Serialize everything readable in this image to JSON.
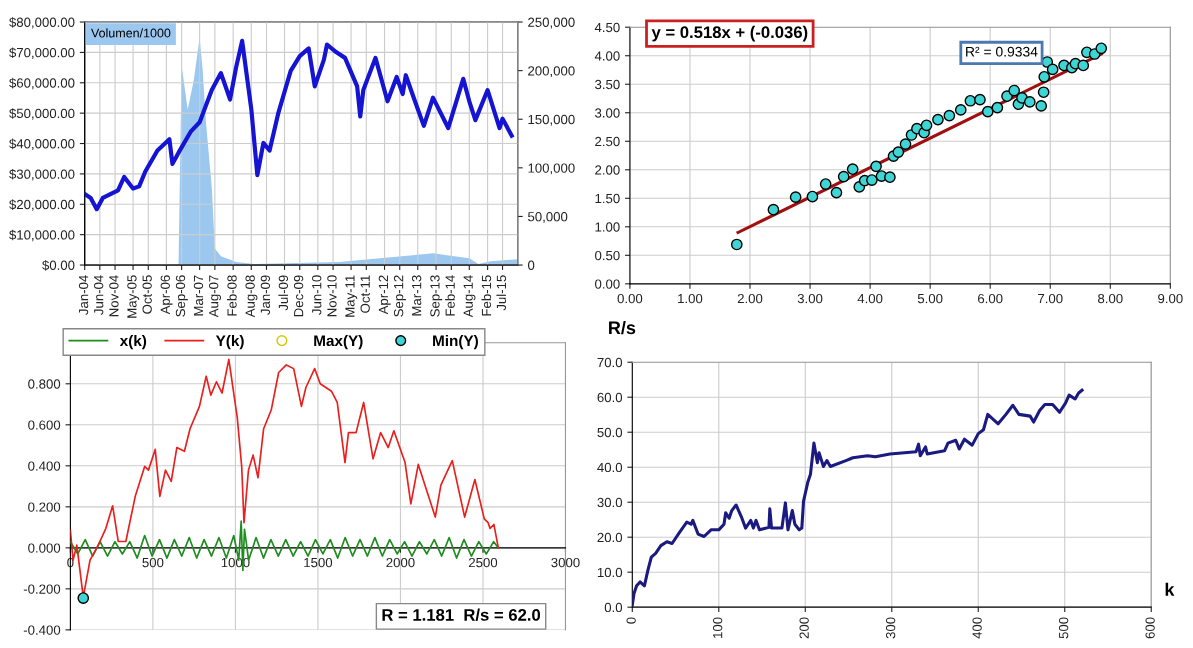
{
  "chart_data": [
    {
      "type": "line",
      "xlim": [
        "2004-01",
        "2015-12"
      ],
      "xticks": [
        {
          "value": "2004-01",
          "label": "Jan-04"
        },
        {
          "value": "2004-06",
          "label": "Jun-04"
        },
        {
          "value": "2004-11",
          "label": "Nov-04"
        },
        {
          "value": "2005-05",
          "label": "May-05"
        },
        {
          "value": "2005-10",
          "label": "Oct-05"
        },
        {
          "value": "2006-04",
          "label": "Apr-06"
        },
        {
          "value": "2006-09",
          "label": "Sep-06"
        },
        {
          "value": "2007-03",
          "label": "Mar-07"
        },
        {
          "value": "2007-08",
          "label": "Aug-07"
        },
        {
          "value": "2008-02",
          "label": "Feb-08"
        },
        {
          "value": "2008-08",
          "label": "Aug-08"
        },
        {
          "value": "2009-01",
          "label": "Jan-09"
        },
        {
          "value": "2009-07",
          "label": "Jul-09"
        },
        {
          "value": "2009-12",
          "label": "Dec-09"
        },
        {
          "value": "2010-06",
          "label": "Jun-10"
        },
        {
          "value": "2010-11",
          "label": "Nov-10"
        },
        {
          "value": "2011-05",
          "label": "May-11"
        },
        {
          "value": "2011-10",
          "label": "Oct-11"
        },
        {
          "value": "2012-04",
          "label": "Apr-12"
        },
        {
          "value": "2012-09",
          "label": "Sep-12"
        },
        {
          "value": "2013-03",
          "label": "Mar-13"
        },
        {
          "value": "2013-09",
          "label": "Sep-13"
        },
        {
          "value": "2014-02",
          "label": "Feb-14"
        },
        {
          "value": "2014-08",
          "label": "Aug-14"
        },
        {
          "value": "2015-02",
          "label": "Feb-15"
        },
        {
          "value": "2015-07",
          "label": "Jul-15"
        }
      ],
      "ylim": [
        0,
        80000
      ],
      "yticks": [
        {
          "value": 0,
          "label": "$0.00"
        },
        {
          "value": 10000,
          "label": "$10,000.00"
        },
        {
          "value": 20000,
          "label": "$20,000.00"
        },
        {
          "value": 30000,
          "label": "$30,000.00"
        },
        {
          "value": 40000,
          "label": "$40,000.00"
        },
        {
          "value": 50000,
          "label": "$50,000.00"
        },
        {
          "value": 60000,
          "label": "$60,000.00"
        },
        {
          "value": 70000,
          "label": "$70,000.00"
        },
        {
          "value": 80000,
          "label": "$80,000.00"
        }
      ],
      "y2lim": [
        0,
        250000
      ],
      "y2ticks": [
        0,
        {
          "value": 50000,
          "label": "50,000"
        },
        {
          "value": 100000,
          "label": "100,000"
        },
        {
          "value": 150000,
          "label": "150,000"
        },
        {
          "value": 200000,
          "label": "200,000"
        },
        {
          "value": 250000,
          "label": "250,000"
        }
      ],
      "grid": true,
      "legend": "top left",
      "series": [
        {
          "name": "Volumen/1000",
          "type": "area",
          "axis": "y2",
          "color": "#9cc8f0",
          "x": [
            "2004-01",
            "2006-08",
            "2006-09",
            "2006-11",
            "2007-01",
            "2007-03",
            "2007-04",
            "2007-05",
            "2007-07",
            "2007-08",
            "2007-10",
            "2008-03",
            "2008-09",
            "2011-01",
            "2013-08",
            "2014-08",
            "2014-11",
            "2015-03",
            "2015-12"
          ],
          "values": [
            0,
            0,
            205000,
            160000,
            190000,
            234000,
            200000,
            150000,
            80000,
            17000,
            9000,
            3000,
            1000,
            3000,
            12000,
            7000,
            1000,
            4000,
            6000
          ]
        },
        {
          "color": "#1414d2",
          "x": [
            "2004-01",
            "2004-03",
            "2004-05",
            "2004-07",
            "2004-12",
            "2005-02",
            "2005-05",
            "2005-07",
            "2005-09",
            "2006-01",
            "2006-05",
            "2006-06",
            "2006-08",
            "2006-12",
            "2007-03",
            "2007-07",
            "2007-10",
            "2008-01",
            "2008-03",
            "2008-05",
            "2008-08",
            "2008-10",
            "2008-12",
            "2009-02",
            "2009-05",
            "2009-09",
            "2009-12",
            "2010-03",
            "2010-05",
            "2010-08",
            "2010-09",
            "2010-12",
            "2011-03",
            "2011-07",
            "2011-08",
            "2011-09",
            "2012-01",
            "2012-05",
            "2012-08",
            "2012-10",
            "2012-11",
            "2013-02",
            "2013-05",
            "2013-08",
            "2014-01",
            "2014-03",
            "2014-06",
            "2014-08",
            "2014-10",
            "2015-02",
            "2015-06",
            "2015-07",
            "2015-10"
          ],
          "values": [
            23400,
            22100,
            18400,
            22100,
            24600,
            29000,
            25200,
            25900,
            30800,
            37700,
            41400,
            33300,
            37000,
            43900,
            47000,
            57600,
            63200,
            54500,
            65000,
            73800,
            51400,
            29600,
            40200,
            37700,
            50200,
            63900,
            68800,
            71300,
            58800,
            67600,
            72600,
            70100,
            68200,
            58800,
            48900,
            57600,
            68200,
            53900,
            61900,
            56300,
            62500,
            53900,
            45800,
            55100,
            45100,
            51400,
            61300,
            53900,
            47700,
            57600,
            45100,
            48200,
            42600
          ]
        }
      ]
    },
    {
      "type": "scatter",
      "xlim": [
        0,
        9
      ],
      "xticks": [
        {
          "value": 0,
          "label": "0.00"
        },
        {
          "value": 1,
          "label": "1.00"
        },
        {
          "value": 2,
          "label": "2.00"
        },
        {
          "value": 3,
          "label": "3.00"
        },
        {
          "value": 4,
          "label": "4.00"
        },
        {
          "value": 5,
          "label": "5.00"
        },
        {
          "value": 6,
          "label": "6.00"
        },
        {
          "value": 7,
          "label": "7.00"
        },
        {
          "value": 8,
          "label": "8.00"
        },
        {
          "value": 9,
          "label": "9.00"
        }
      ],
      "ylim": [
        0,
        4.5
      ],
      "yticks": [
        {
          "value": 0,
          "label": "0.00"
        },
        {
          "value": 0.5,
          "label": "0.50"
        },
        {
          "value": 1,
          "label": "1.00"
        },
        {
          "value": 1.5,
          "label": "1.50"
        },
        {
          "value": 2,
          "label": "2.00"
        },
        {
          "value": 2.5,
          "label": "2.50"
        },
        {
          "value": 3,
          "label": "3.00"
        },
        {
          "value": 3.5,
          "label": "3.50"
        },
        {
          "value": 4,
          "label": "4.00"
        },
        {
          "value": 4.5,
          "label": "4.50"
        }
      ],
      "grid": true,
      "annotations": [
        "y = 0.518x + (-0.036)",
        "R² = 0.9334"
      ],
      "series": [
        {
          "color": "#3fd5d5",
          "marker": "circle",
          "x": [
            1.78,
            2.39,
            2.76,
            3.04,
            3.26,
            3.44,
            3.56,
            3.71,
            3.82,
            3.91,
            4.03,
            4.1,
            4.19,
            4.33,
            4.39,
            4.47,
            4.59,
            4.69,
            4.78,
            4.9,
            4.94,
            5.13,
            5.32,
            5.51,
            5.67,
            5.83,
            5.96,
            6.12,
            6.28,
            6.4,
            6.47,
            6.53,
            6.66,
            6.85,
            6.89,
            6.9,
            6.95,
            7.04,
            7.23,
            7.36,
            7.42,
            7.55,
            7.61,
            7.74,
            7.85
          ],
          "values": [
            0.69,
            1.3,
            1.52,
            1.53,
            1.75,
            1.6,
            1.88,
            2.01,
            1.7,
            1.81,
            1.82,
            2.06,
            1.89,
            1.87,
            2.24,
            2.31,
            2.45,
            2.61,
            2.72,
            2.65,
            2.78,
            2.88,
            2.95,
            3.05,
            3.21,
            3.23,
            3.02,
            3.09,
            3.29,
            3.39,
            3.15,
            3.26,
            3.19,
            3.12,
            3.36,
            3.63,
            3.89,
            3.76,
            3.83,
            3.79,
            3.86,
            3.83,
            4.06,
            4.03,
            4.13
          ]
        },
        {
          "type": "line",
          "color": "#a01010",
          "x": [
            1.8,
            7.85
          ],
          "values": [
            0.9,
            4.03
          ]
        }
      ]
    },
    {
      "type": "line",
      "xlim": [
        0,
        3000
      ],
      "xticks": [
        0,
        500,
        1000,
        1500,
        2000,
        2500,
        3000
      ],
      "ylim": [
        -0.4,
        1.0
      ],
      "yticks": [
        {
          "value": -0.4,
          "label": "-0.400"
        },
        {
          "value": -0.2,
          "label": "-0.200"
        },
        {
          "value": 0,
          "label": "0.000"
        },
        {
          "value": 0.2,
          "label": "0.200"
        },
        {
          "value": 0.4,
          "label": "0.400"
        },
        {
          "value": 0.6,
          "label": "0.600"
        },
        {
          "value": 0.8,
          "label": "0.800"
        }
      ],
      "grid": true,
      "legend": "top left",
      "annotations": [
        "R = 1.181  R/s = 62.0"
      ],
      "series": [
        {
          "name": "x(k)",
          "color": "#1e8c1e",
          "x": [
            0,
            45,
            90,
            135,
            180,
            225,
            270,
            315,
            360,
            405,
            450,
            495,
            540,
            585,
            630,
            675,
            720,
            765,
            810,
            855,
            900,
            945,
            990,
            1020,
            1035,
            1045,
            1055,
            1080,
            1125,
            1170,
            1215,
            1260,
            1305,
            1350,
            1395,
            1440,
            1485,
            1530,
            1575,
            1620,
            1665,
            1710,
            1755,
            1800,
            1845,
            1890,
            1935,
            1980,
            2025,
            2070,
            2115,
            2160,
            2205,
            2250,
            2295,
            2340,
            2385,
            2430,
            2475,
            2520,
            2565,
            2593
          ],
          "values": [
            0.03,
            -0.03,
            0.04,
            -0.04,
            0.03,
            -0.04,
            0.03,
            -0.03,
            0.03,
            -0.05,
            0.06,
            -0.04,
            0.04,
            -0.05,
            0.04,
            -0.04,
            0.05,
            -0.05,
            0.04,
            -0.04,
            0.05,
            -0.05,
            0.06,
            -0.06,
            0.13,
            -0.11,
            0.09,
            -0.06,
            0.05,
            -0.05,
            0.04,
            -0.04,
            0.04,
            -0.04,
            0.03,
            -0.04,
            0.04,
            -0.03,
            0.04,
            -0.05,
            0.05,
            -0.04,
            0.04,
            -0.04,
            0.05,
            -0.04,
            0.04,
            -0.03,
            0.03,
            -0.04,
            0.03,
            -0.03,
            0.04,
            -0.04,
            0.05,
            -0.05,
            0.04,
            -0.04,
            0.03,
            -0.03,
            0.03,
            0.0
          ]
        },
        {
          "name": "Y(k)",
          "color": "#e8201e",
          "x": [
            0,
            16,
            39,
            78,
            119,
            169,
            215,
            256,
            290,
            336,
            393,
            450,
            473,
            514,
            542,
            576,
            611,
            645,
            691,
            725,
            782,
            823,
            851,
            885,
            919,
            960,
            1011,
            1038,
            1052,
            1079,
            1107,
            1137,
            1171,
            1217,
            1262,
            1308,
            1353,
            1400,
            1427,
            1480,
            1514,
            1582,
            1617,
            1664,
            1685,
            1731,
            1777,
            1834,
            1880,
            1926,
            1960,
            2028,
            2063,
            2108,
            2211,
            2245,
            2314,
            2389,
            2451,
            2508,
            2531,
            2543,
            2566,
            2593
          ],
          "values": [
            0.086,
            -0.06,
            0.013,
            -0.24,
            -0.06,
            0.013,
            0.095,
            0.205,
            0.031,
            0.031,
            0.251,
            0.397,
            0.379,
            0.48,
            0.251,
            0.379,
            0.324,
            0.489,
            0.471,
            0.581,
            0.69,
            0.837,
            0.745,
            0.81,
            0.755,
            0.919,
            0.636,
            0.397,
            0.123,
            0.379,
            0.452,
            0.342,
            0.581,
            0.672,
            0.855,
            0.892,
            0.874,
            0.69,
            0.782,
            0.874,
            0.8,
            0.764,
            0.709,
            0.416,
            0.562,
            0.562,
            0.709,
            0.434,
            0.562,
            0.489,
            0.571,
            0.416,
            0.214,
            0.407,
            0.15,
            0.306,
            0.425,
            0.15,
            0.333,
            0.141,
            0.123,
            0.095,
            0.114,
            0.0
          ]
        },
        {
          "name": "Max(Y)",
          "type": "scatter",
          "color": "#d8c800",
          "marker": "circle"
        },
        {
          "name": "Min(Y)",
          "type": "scatter",
          "color": "#3fd5d5",
          "marker": "circle",
          "x": [
            78
          ],
          "values": [
            -0.245
          ]
        }
      ]
    },
    {
      "type": "line",
      "xlabel": "k",
      "ylabel": "R/s",
      "xlim": [
        0,
        600
      ],
      "xticks": [
        0,
        100,
        200,
        300,
        400,
        500,
        600
      ],
      "ylim": [
        0,
        70
      ],
      "yticks": [
        {
          "value": 0,
          "label": "0.0"
        },
        {
          "value": 10,
          "label": "10.0"
        },
        {
          "value": 20,
          "label": "20.0"
        },
        {
          "value": 30,
          "label": "30.0"
        },
        {
          "value": 40,
          "label": "40.0"
        },
        {
          "value": 50,
          "label": "50.0"
        },
        {
          "value": 60,
          "label": "60.0"
        },
        {
          "value": 70,
          "label": "70.0"
        }
      ],
      "grid": true,
      "series": [
        {
          "color": "#1a1a80",
          "x": [
            0,
            2,
            5,
            9,
            14,
            18,
            22,
            27,
            33,
            40,
            46,
            55,
            63,
            68,
            70,
            76,
            83,
            91,
            100,
            106,
            108,
            112,
            115,
            120,
            126,
            131,
            137,
            140,
            143,
            147,
            158,
            159,
            161,
            173,
            177,
            180,
            185,
            188,
            193,
            196,
            198,
            203,
            206,
            210,
            214,
            216,
            221,
            225,
            229,
            247,
            255,
            272,
            281,
            298,
            328,
            331,
            333,
            339,
            341,
            361,
            365,
            374,
            378,
            384,
            393,
            400,
            406,
            411,
            423,
            432,
            440,
            447,
            460,
            464,
            471,
            477,
            486,
            494,
            501,
            505,
            512,
            516,
            520
          ],
          "values": [
            0.6,
            3.9,
            6.1,
            7.2,
            6.1,
            10.5,
            14.3,
            15.4,
            17.6,
            18.7,
            18.2,
            21.5,
            24.3,
            23.7,
            24.8,
            20.9,
            20.2,
            22.1,
            22.1,
            23.7,
            27.0,
            25.4,
            27.6,
            29.2,
            25.9,
            22.6,
            24.8,
            22.6,
            24.8,
            22.1,
            22.8,
            28.1,
            22.6,
            22.6,
            29.8,
            22.1,
            27.6,
            23.7,
            22.1,
            22.6,
            30.3,
            35.8,
            38.0,
            46.9,
            41.3,
            44.1,
            40.2,
            41.9,
            40.2,
            41.9,
            42.7,
            43.3,
            43.0,
            43.8,
            44.4,
            46.6,
            43.3,
            45.8,
            43.8,
            44.7,
            46.9,
            47.7,
            45.2,
            48.0,
            46.3,
            49.6,
            50.7,
            55.1,
            52.4,
            55.1,
            57.7,
            55.1,
            54.6,
            52.9,
            56.2,
            57.9,
            57.9,
            55.7,
            58.4,
            60.6,
            59.5,
            61.2,
            62.0
          ]
        }
      ]
    }
  ]
}
